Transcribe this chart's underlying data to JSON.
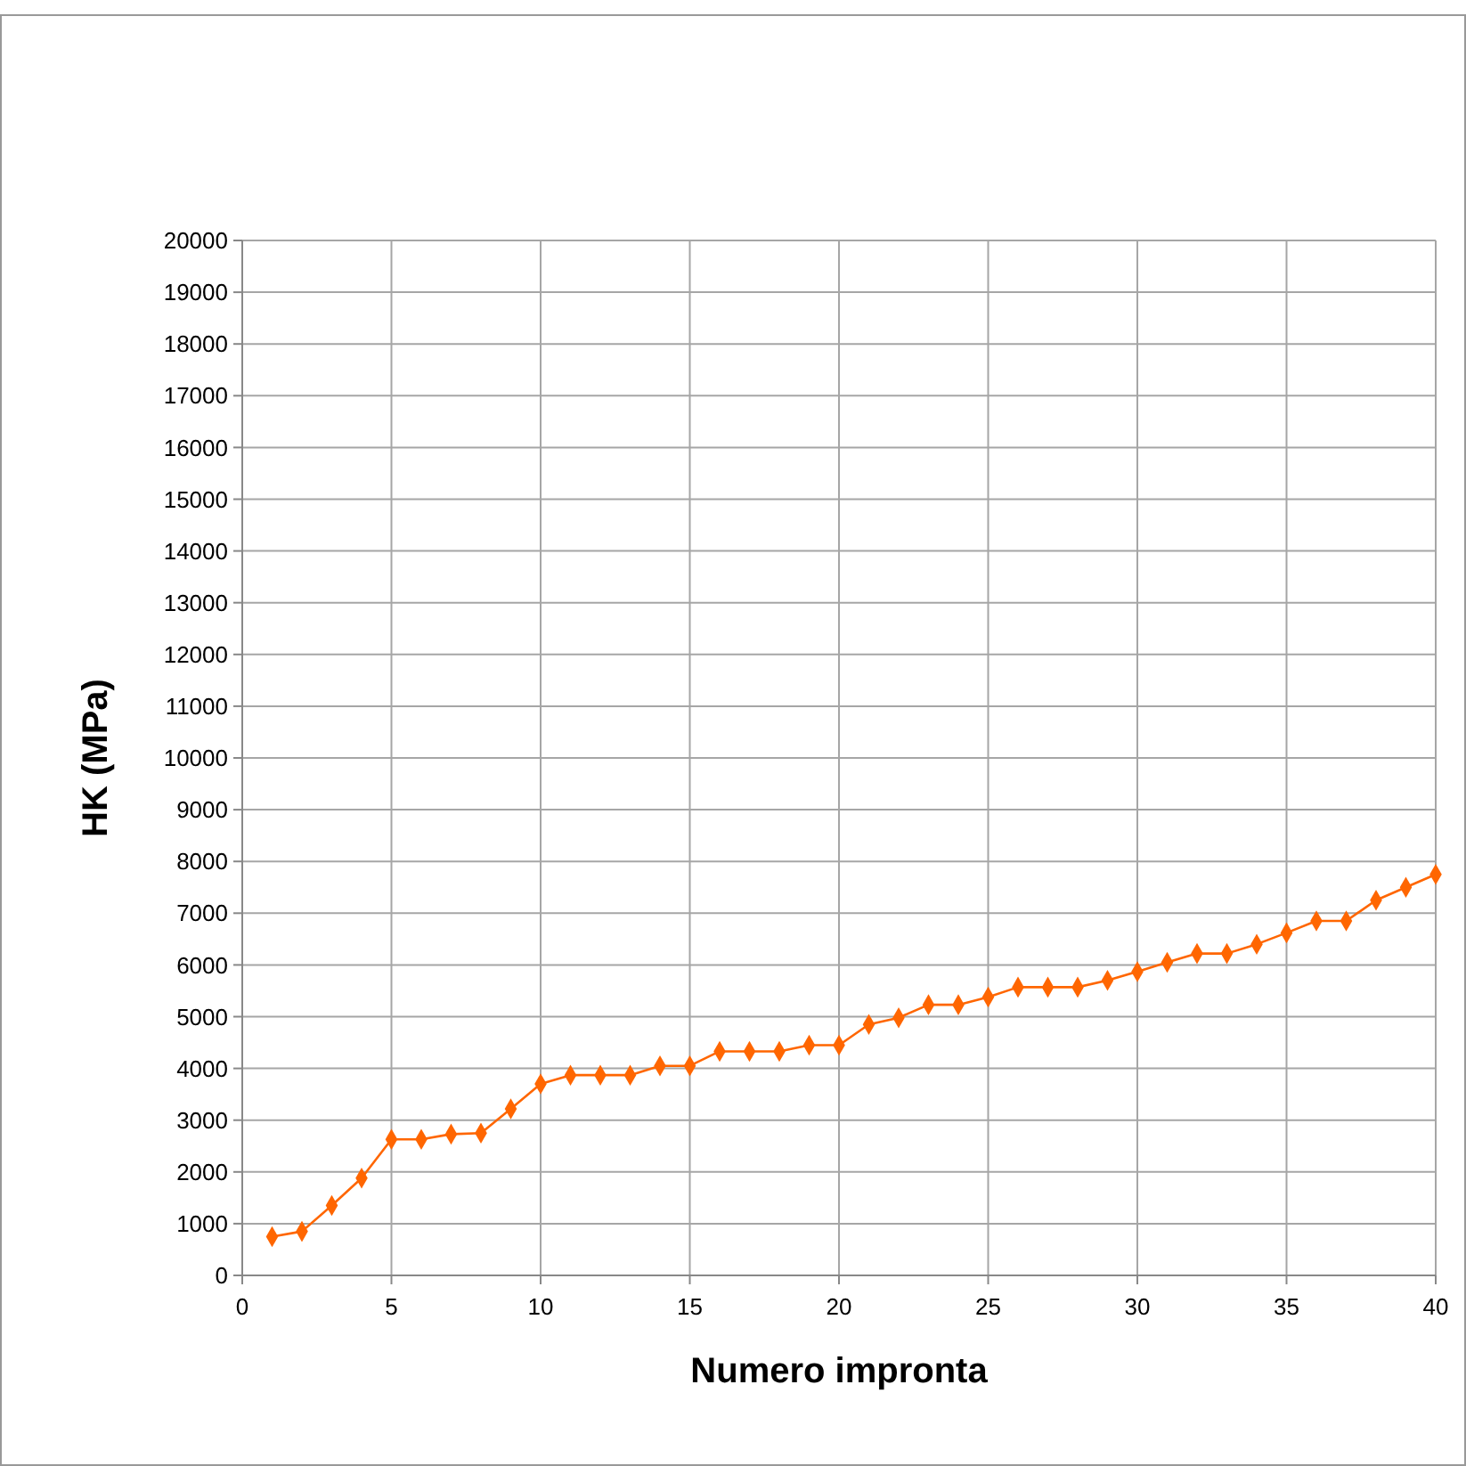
{
  "chart_data": {
    "type": "line",
    "xlabel": "Numero impronta",
    "ylabel": "HK (MPa)",
    "x": [
      1,
      2,
      3,
      4,
      5,
      6,
      7,
      8,
      9,
      10,
      11,
      12,
      13,
      14,
      15,
      16,
      17,
      18,
      19,
      20,
      21,
      22,
      23,
      24,
      25,
      26,
      27,
      28,
      29,
      30,
      31,
      32,
      33,
      34,
      35,
      36,
      37,
      38,
      39,
      40
    ],
    "series": [
      {
        "color": "#ff6600",
        "values": [
          750,
          850,
          1350,
          1880,
          2630,
          2630,
          2730,
          2750,
          3220,
          3700,
          3870,
          3870,
          3870,
          4050,
          4050,
          4330,
          4330,
          4330,
          4450,
          4450,
          4850,
          4980,
          5230,
          5230,
          5380,
          5570,
          5570,
          5570,
          5700,
          5870,
          6050,
          6220,
          6220,
          6400,
          6620,
          6850,
          6850,
          7250,
          7500,
          7750
        ]
      }
    ],
    "xlim": [
      0,
      40
    ],
    "xticks": [
      0,
      5,
      10,
      15,
      20,
      25,
      30,
      35,
      40
    ],
    "ylim": [
      0,
      20000
    ],
    "yticks": [
      0,
      1000,
      2000,
      3000,
      4000,
      5000,
      6000,
      7000,
      8000,
      9000,
      10000,
      11000,
      12000,
      13000,
      14000,
      15000,
      16000,
      17000,
      18000,
      19000,
      20000
    ],
    "grid": true,
    "marker": "diamond",
    "line_style": "solid"
  }
}
